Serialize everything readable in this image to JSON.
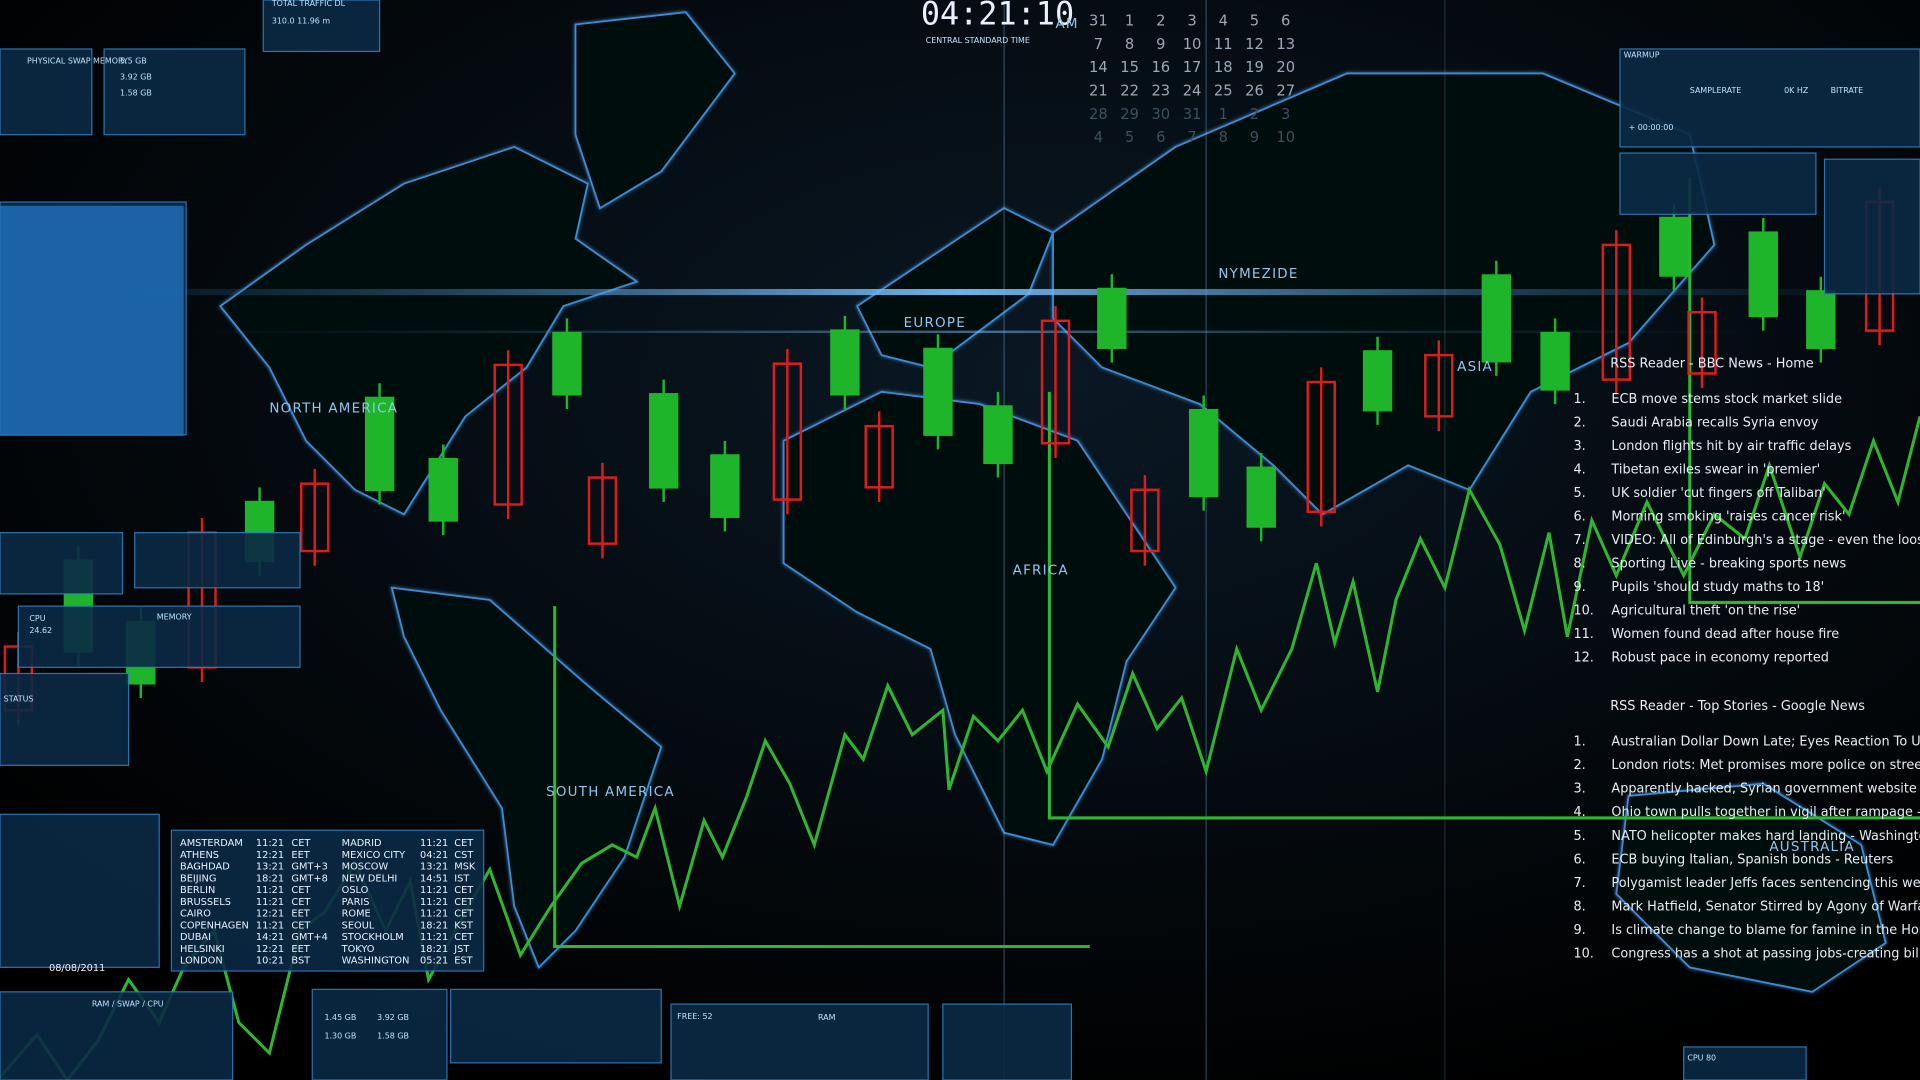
{
  "clock": {
    "time": "04:21:10",
    "ampm": "AM",
    "zone": "CENTRAL STANDARD TIME"
  },
  "calendar": [
    [
      "31",
      "1",
      "2",
      "3",
      "4",
      "5",
      "6"
    ],
    [
      "7",
      "8",
      "9",
      "10",
      "11",
      "12",
      "13"
    ],
    [
      "14",
      "15",
      "16",
      "17",
      "18",
      "19",
      "20"
    ],
    [
      "21",
      "22",
      "23",
      "24",
      "25",
      "26",
      "27"
    ],
    [
      "28",
      "29",
      "30",
      "31",
      "1",
      "2",
      "3"
    ],
    [
      "4",
      "5",
      "6",
      "7",
      "8",
      "9",
      "10"
    ]
  ],
  "map_labels": [
    "NORTH AMERICA",
    "EUROPE",
    "AFRICA",
    "SOUTH AMERICA",
    "ASIA",
    "AUSTRALIA",
    "NYMEZIDE"
  ],
  "panels": {
    "traffic": "TOTAL TRAFFIC DL",
    "traffic_vals": "310.0  11.96 m",
    "swap": "PHYSICAL SWAP MEMORY",
    "swap_vals": [
      "5.5 GB",
      "3.92 GB",
      "1.58 GB"
    ],
    "cpu": "CPU",
    "cpu_val": "24.62",
    "memory": "MEMORY",
    "status": "STATUS",
    "date": "08/08/2011",
    "ram_swap": "RAM / SWAP / CPU",
    "ram": "RAM",
    "ram_vals": [
      "1.45 GB",
      "3.92 GB",
      "1.30 GB",
      "1.58 GB"
    ],
    "free": "FREE: 52",
    "warmup": "WARMUP",
    "samplerate": "SAMPLERATE",
    "bitrate": "BITRATE",
    "hz": "0K HZ",
    "timecode": "+ 00:00:00",
    "cpu80": "CPU 80"
  },
  "rss1": {
    "title": "RSS Reader - BBC News - Home",
    "items": [
      {
        "n": "1.",
        "t": "ECB move stems stock market slide"
      },
      {
        "n": "2.",
        "t": "Saudi Arabia recalls Syria envoy"
      },
      {
        "n": "3.",
        "t": "London flights hit by air traffic delays"
      },
      {
        "n": "4.",
        "t": "Tibetan exiles swear in 'premier'"
      },
      {
        "n": "5.",
        "t": "UK soldier 'cut fingers off Taliban'"
      },
      {
        "n": "6.",
        "t": "Morning smoking 'raises cancer risk'"
      },
      {
        "n": "7.",
        "t": "VIDEO: All of Edinburgh's a stage - even the loos"
      },
      {
        "n": "8.",
        "t": "Sporting Live - breaking sports news"
      },
      {
        "n": "9.",
        "t": "Pupils 'should study maths to 18'"
      },
      {
        "n": "10.",
        "t": "Agricultural theft 'on the rise'"
      },
      {
        "n": "11.",
        "t": "Women found dead after house fire"
      },
      {
        "n": "12.",
        "t": "Robust pace in economy reported"
      }
    ]
  },
  "rss2": {
    "title": "RSS Reader - Top Stories - Google News",
    "items": [
      {
        "n": "1.",
        "t": "Australian Dollar Down Late; Eyes Reaction To US Do"
      },
      {
        "n": "2.",
        "t": "London riots: Met promises more police on streets -"
      },
      {
        "n": "3.",
        "t": "Apparently hacked, Syrian government website cont"
      },
      {
        "n": "4.",
        "t": "Ohio town pulls together in vigil after rampage - CBS"
      },
      {
        "n": "5.",
        "t": "NATO helicopter makes hard landing - Washington P"
      },
      {
        "n": "6.",
        "t": "ECB buying Italian, Spanish bonds - Reuters"
      },
      {
        "n": "7.",
        "t": "Polygamist leader Jeffs faces sentencing this week -"
      },
      {
        "n": "8.",
        "t": "Mark Hatfield, Senator Stirred by Agony of Warfare,"
      },
      {
        "n": "9.",
        "t": "Is climate change to blame for famine in the Horn of"
      },
      {
        "n": "10.",
        "t": "Congress has a shot at passing jobs-creating bills - Th"
      }
    ]
  },
  "cities": [
    [
      "AMSTERDAM",
      "11:21",
      "CET",
      "MADRID",
      "11:21",
      "CET"
    ],
    [
      "ATHENS",
      "12:21",
      "EET",
      "MEXICO CITY",
      "04:21",
      "CST"
    ],
    [
      "BAGHDAD",
      "13:21",
      "GMT+3",
      "MOSCOW",
      "13:21",
      "MSK"
    ],
    [
      "BEIJING",
      "18:21",
      "GMT+8",
      "NEW DELHI",
      "14:51",
      "IST"
    ],
    [
      "BERLIN",
      "11:21",
      "CET",
      "OSLO",
      "11:21",
      "CET"
    ],
    [
      "BRUSSELS",
      "11:21",
      "CET",
      "PARIS",
      "11:21",
      "CET"
    ],
    [
      "CAIRO",
      "12:21",
      "EET",
      "ROME",
      "11:21",
      "CET"
    ],
    [
      "COPENHAGEN",
      "11:21",
      "CET",
      "SEOUL",
      "18:21",
      "KST"
    ],
    [
      "DUBAI",
      "14:21",
      "GMT+4",
      "STOCKHOLM",
      "11:21",
      "CET"
    ],
    [
      "HELSINKI",
      "12:21",
      "EET",
      "TOKYO",
      "18:21",
      "JST"
    ],
    [
      "LONDON",
      "10:21",
      "BST",
      "WASHINGTON",
      "05:21",
      "EST"
    ]
  ]
}
